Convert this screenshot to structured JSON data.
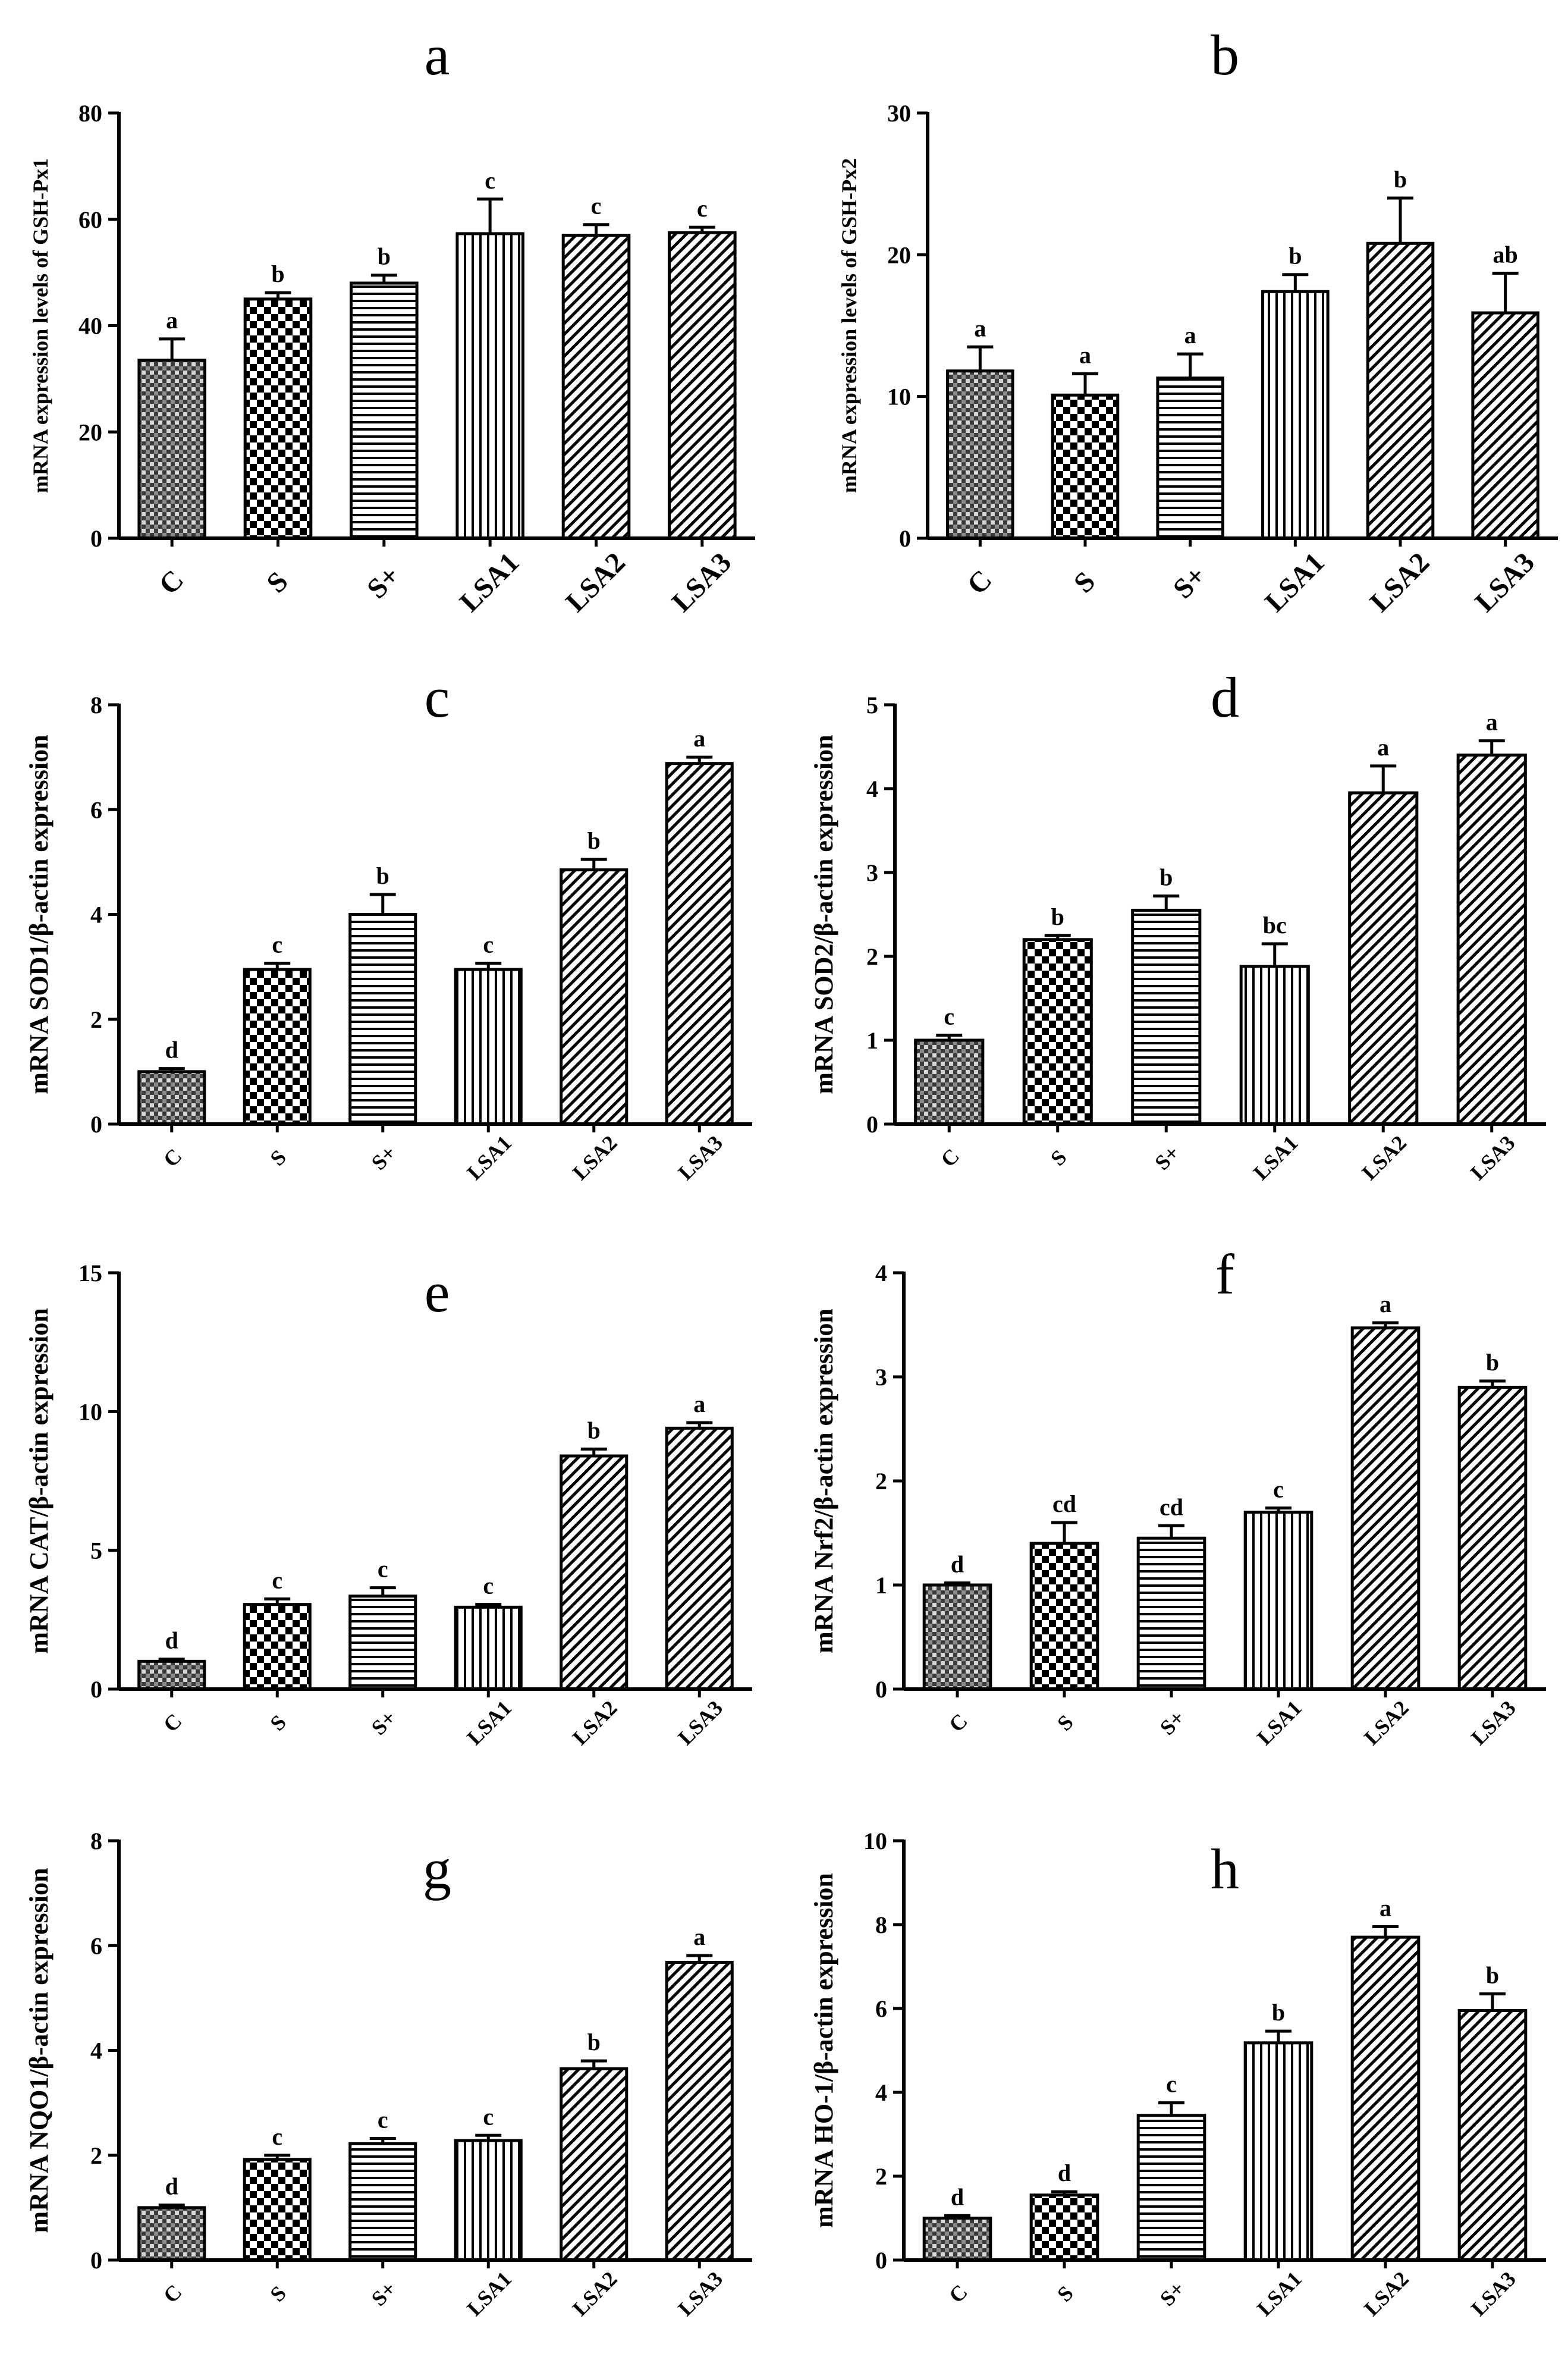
{
  "chart_data": [
    {
      "type": "bar",
      "panel": "a",
      "categories": [
        "C",
        "S",
        "S+",
        "LSA1",
        "LSA2",
        "LSA3"
      ],
      "values": [
        33.5,
        45,
        48,
        57.3,
        57,
        57.5
      ],
      "errors": [
        4,
        1.2,
        1.5,
        6.5,
        2,
        1
      ],
      "significance": [
        "a",
        "b",
        "b",
        "c",
        "c",
        "c"
      ],
      "patterns": [
        "dots",
        "checker",
        "hlines",
        "vlines",
        "diag",
        "diag"
      ],
      "ylabel": "mRNA expression levels of GSH-Px1",
      "ylim": [
        0,
        80
      ],
      "yticks": [
        "0",
        "20",
        "40",
        "60",
        "80"
      ]
    },
    {
      "type": "bar",
      "panel": "b",
      "categories": [
        "C",
        "S",
        "S+",
        "LSA1",
        "LSA2",
        "LSA3"
      ],
      "values": [
        11.8,
        10.1,
        11.3,
        17.4,
        20.8,
        15.9
      ],
      "errors": [
        1.7,
        1.5,
        1.7,
        1.2,
        3.2,
        2.8
      ],
      "significance": [
        "a",
        "a",
        "a",
        "b",
        "b",
        "ab"
      ],
      "patterns": [
        "dots",
        "checker",
        "hlines",
        "vlines",
        "diag",
        "diag"
      ],
      "ylabel": "mRNA expression levels of GSH-Px2",
      "ylim": [
        0,
        30
      ],
      "yticks": [
        "0",
        "10",
        "20",
        "30"
      ]
    },
    {
      "type": "bar",
      "panel": "c",
      "categories": [
        "C",
        "S",
        "S+",
        "LSA1",
        "LSA2",
        "LSA3"
      ],
      "values": [
        1.0,
        2.95,
        4.0,
        2.95,
        4.85,
        6.88
      ],
      "errors": [
        0.06,
        0.12,
        0.38,
        0.12,
        0.2,
        0.12
      ],
      "significance": [
        "d",
        "c",
        "b",
        "c",
        "b",
        "a"
      ],
      "patterns": [
        "dots",
        "checker",
        "hlines",
        "vlines",
        "diag",
        "diag"
      ],
      "ylabel": "mRNA SOD1/β-actin expression",
      "ylim": [
        0,
        8
      ],
      "yticks": [
        "0",
        "2",
        "4",
        "6",
        "8"
      ]
    },
    {
      "type": "bar",
      "panel": "d",
      "categories": [
        "C",
        "S",
        "S+",
        "LSA1",
        "LSA2",
        "LSA3"
      ],
      "values": [
        1.0,
        2.2,
        2.55,
        1.88,
        3.95,
        4.4
      ],
      "errors": [
        0.06,
        0.05,
        0.17,
        0.27,
        0.32,
        0.17
      ],
      "significance": [
        "c",
        "b",
        "b",
        "bc",
        "a",
        "a"
      ],
      "patterns": [
        "dots",
        "checker",
        "hlines",
        "vlines",
        "diag",
        "diag"
      ],
      "ylabel": "mRNA SOD2/β-actin expression",
      "ylim": [
        0,
        5
      ],
      "yticks": [
        "0",
        "1",
        "2",
        "3",
        "4",
        "5"
      ]
    },
    {
      "type": "bar",
      "panel": "e",
      "categories": [
        "C",
        "S",
        "S+",
        "LSA1",
        "LSA2",
        "LSA3"
      ],
      "values": [
        1.0,
        3.05,
        3.35,
        2.95,
        8.4,
        9.4
      ],
      "errors": [
        0.08,
        0.2,
        0.3,
        0.1,
        0.25,
        0.2
      ],
      "significance": [
        "d",
        "c",
        "c",
        "c",
        "b",
        "a"
      ],
      "patterns": [
        "dots",
        "checker",
        "hlines",
        "vlines",
        "diag",
        "diag"
      ],
      "ylabel": "mRNA CAT/β-actin expression",
      "ylim": [
        0,
        15
      ],
      "yticks": [
        "0",
        "5",
        "10",
        "15"
      ]
    },
    {
      "type": "bar",
      "panel": "f",
      "categories": [
        "C",
        "S",
        "S+",
        "LSA1",
        "LSA2",
        "LSA3"
      ],
      "values": [
        1.0,
        1.4,
        1.45,
        1.7,
        3.47,
        2.9
      ],
      "errors": [
        0.02,
        0.2,
        0.12,
        0.04,
        0.05,
        0.06
      ],
      "significance": [
        "d",
        "cd",
        "cd",
        "c",
        "a",
        "b"
      ],
      "patterns": [
        "dots",
        "checker",
        "hlines",
        "vlines",
        "diag",
        "diag"
      ],
      "ylabel": "mRNA Nrf2/β-actin expression",
      "ylim": [
        0,
        4
      ],
      "yticks": [
        "0",
        "1",
        "2",
        "3",
        "4"
      ]
    },
    {
      "type": "bar",
      "panel": "g",
      "categories": [
        "C",
        "S",
        "S+",
        "LSA1",
        "LSA2",
        "LSA3"
      ],
      "values": [
        1.0,
        1.92,
        2.22,
        2.28,
        3.65,
        5.68
      ],
      "errors": [
        0.05,
        0.08,
        0.1,
        0.1,
        0.15,
        0.13
      ],
      "significance": [
        "d",
        "c",
        "c",
        "c",
        "b",
        "a"
      ],
      "patterns": [
        "dots",
        "checker",
        "hlines",
        "vlines",
        "diag",
        "diag"
      ],
      "ylabel": "mRNA NQO1/β-actin expression",
      "ylim": [
        0,
        8
      ],
      "yticks": [
        "0",
        "2",
        "4",
        "6",
        "8"
      ]
    },
    {
      "type": "bar",
      "panel": "h",
      "categories": [
        "C",
        "S",
        "S+",
        "LSA1",
        "LSA2",
        "LSA3"
      ],
      "values": [
        1.0,
        1.55,
        3.45,
        5.18,
        7.7,
        5.95
      ],
      "errors": [
        0.06,
        0.08,
        0.3,
        0.28,
        0.25,
        0.4
      ],
      "significance": [
        "d",
        "d",
        "c",
        "b",
        "a",
        "b"
      ],
      "patterns": [
        "dots",
        "checker",
        "hlines",
        "vlines",
        "diag",
        "diag"
      ],
      "ylabel": "mRNA HO-1/β-actin expression",
      "ylim": [
        0,
        10
      ],
      "yticks": [
        "0",
        "2",
        "4",
        "6",
        "8",
        "10"
      ]
    }
  ]
}
